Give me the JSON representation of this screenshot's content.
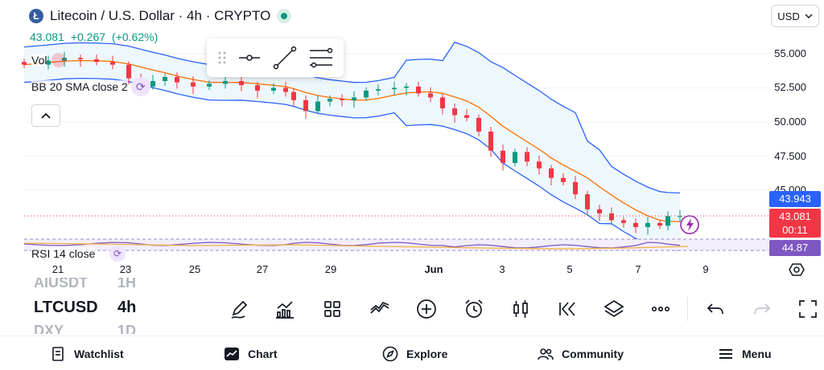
{
  "header": {
    "logo_glyph": "Ł",
    "symbol_title": "Litecoin / U.S. Dollar · 4h · CRYPTO",
    "price": "43.081",
    "change": "+0.267",
    "change_pct": "(+0.62%)",
    "currency": "USD"
  },
  "indicators": {
    "vol_label": "Vol",
    "bb_label": "BB 20 SMA close 2",
    "rsi_label": "RSI 14 close"
  },
  "price_axis": {
    "ticks": [
      "55.000",
      "52.500",
      "50.000",
      "47.500",
      "45.000"
    ],
    "upper_band_tag": "43.943",
    "last_price_tag": "43.081",
    "countdown_tag": "00:11",
    "rsi_tag": "44.87"
  },
  "time_axis": {
    "labels": [
      "21",
      "23",
      "25",
      "27",
      "29",
      "Jun",
      "3",
      "5",
      "7",
      "9"
    ]
  },
  "watchlist": {
    "above": "AIUSDT",
    "above_res": "1H",
    "symbol": "LTCUSD",
    "interval": "4h",
    "below": "DXY",
    "below_res": "1D"
  },
  "colors": {
    "up": "#089981",
    "down": "#f23645",
    "basis": "#ff6d00",
    "band": "#2962ff",
    "rsi": "#7e57c2",
    "band_fill": "#e8f4fb"
  },
  "toolbar_icons": [
    "pencil-icon",
    "indicators-icon",
    "templates-icon",
    "compare-icon",
    "add-icon",
    "alarm-icon",
    "candles-icon",
    "replay-icon",
    "layers-icon",
    "more-icon",
    "undo-icon",
    "redo-icon",
    "fullscreen-icon"
  ],
  "nav": {
    "watchlist": "Watchlist",
    "chart": "Chart",
    "explore": "Explore",
    "community": "Community",
    "menu": "Menu"
  }
}
